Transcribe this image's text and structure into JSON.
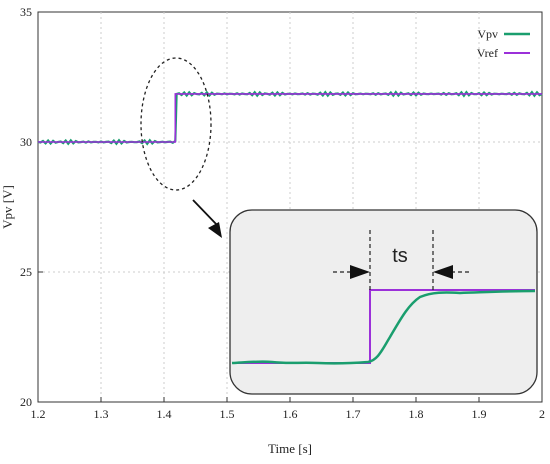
{
  "chart_data": {
    "type": "line",
    "title": "",
    "xlabel": "Time [s]",
    "ylabel": "Vpv [V]",
    "xlim": [
      1.2,
      2.0
    ],
    "ylim": [
      20,
      35
    ],
    "xticks": [
      "1.2",
      "1.3",
      "1.4",
      "1.5",
      "1.6",
      "1.7",
      "1.8",
      "1.9",
      "2"
    ],
    "yticks": [
      "20",
      "25",
      "30",
      "35"
    ],
    "grid": true,
    "legend": "top-right",
    "series": [
      {
        "name": "Vpv",
        "color": "#1a9e6e",
        "x": [
          1.2,
          1.3,
          1.41,
          1.418,
          1.42,
          1.5,
          1.6,
          1.7,
          1.8,
          1.9,
          2.0
        ],
        "y": [
          30.0,
          30.0,
          30.0,
          30.0,
          31.85,
          31.85,
          31.85,
          31.85,
          31.85,
          31.85,
          31.85
        ]
      },
      {
        "name": "Vref",
        "color": "#9b30d9",
        "x": [
          1.2,
          1.418,
          1.418,
          2.0
        ],
        "y": [
          30.0,
          30.0,
          31.85,
          31.85
        ]
      }
    ],
    "annotations": [
      {
        "type": "ellipse",
        "target": "step at t=1.42 s"
      },
      {
        "type": "zoom-inset",
        "label": "ts"
      }
    ]
  },
  "colors": {
    "vpv": "#1a9e6e",
    "vref": "#9b30d9",
    "inset_bg": "#eeeeee",
    "grid": "#cccccc"
  }
}
